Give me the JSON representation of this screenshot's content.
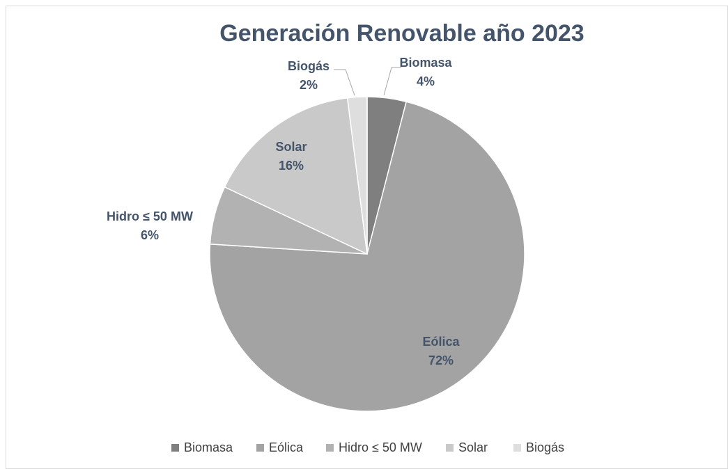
{
  "chart_data": {
    "type": "pie",
    "title": "Generación Renovable año 2023",
    "categories": [
      "Biomasa",
      "Eólica",
      "Hidro ≤ 50 MW",
      "Solar",
      "Biogás"
    ],
    "values": [
      4,
      72,
      6,
      16,
      2
    ],
    "value_labels": [
      "4%",
      "72%",
      "6%",
      "16%",
      "2%"
    ],
    "colors": [
      "#7f7f7f",
      "#a3a3a3",
      "#b2b2b2",
      "#c9c9c9",
      "#dedede"
    ],
    "legend": "bottom"
  }
}
